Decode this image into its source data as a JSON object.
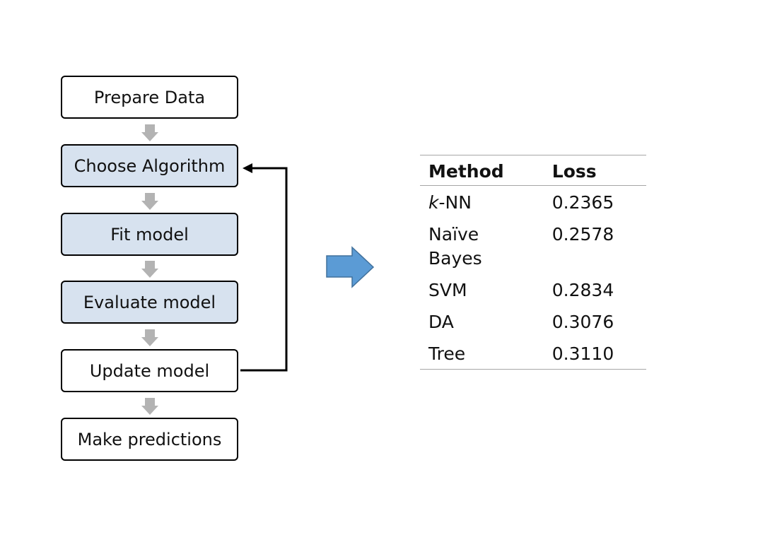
{
  "workflow": {
    "steps": [
      {
        "label": "Prepare Data",
        "shaded": false
      },
      {
        "label": "Choose Algorithm",
        "shaded": true
      },
      {
        "label": "Fit model",
        "shaded": true
      },
      {
        "label": "Evaluate model",
        "shaded": true
      },
      {
        "label": "Update model",
        "shaded": false
      },
      {
        "label": "Make predictions",
        "shaded": false
      }
    ]
  },
  "results_table": {
    "headers": {
      "method": "Method",
      "loss": "Loss"
    },
    "rows": [
      {
        "method_italic_prefix": "k",
        "method": "-NN",
        "loss": "0.2365"
      },
      {
        "method": "Naïve\nBayes",
        "loss": "0.2578"
      },
      {
        "method": "SVM",
        "loss": "0.2834"
      },
      {
        "method": "DA",
        "loss": "0.3076"
      },
      {
        "method": "Tree",
        "loss": "0.3110"
      }
    ]
  },
  "colors": {
    "step_shaded_fill": "#d7e2ef",
    "flow_arrow_fill": "#b3b3b3",
    "big_arrow_fill": "#5b9bd5",
    "big_arrow_stroke": "#41719c",
    "table_rule": "#a6a6a6"
  }
}
